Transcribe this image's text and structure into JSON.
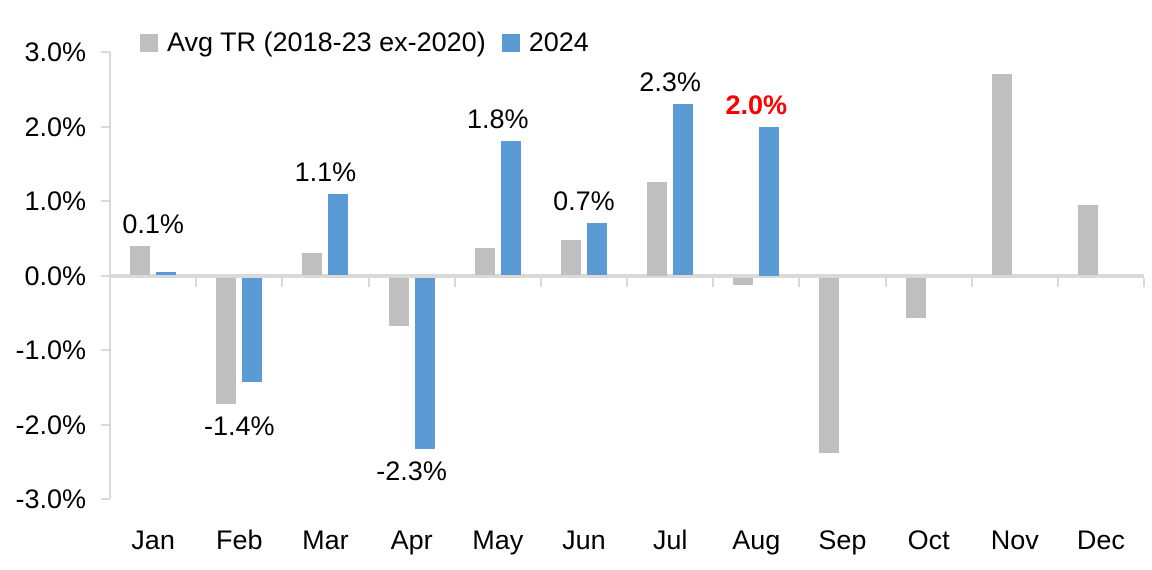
{
  "chart_data": {
    "type": "bar",
    "title": "",
    "categories": [
      "Jan",
      "Feb",
      "Mar",
      "Apr",
      "May",
      "Jun",
      "Jul",
      "Aug",
      "Sep",
      "Oct",
      "Nov",
      "Dec"
    ],
    "series": [
      {
        "name": "Avg TR (2018-23 ex-2020)",
        "color": "#bfbfbf",
        "values": [
          0.4,
          -1.7,
          0.3,
          -0.65,
          0.37,
          0.47,
          1.25,
          -0.1,
          -2.35,
          -0.55,
          2.7,
          0.95
        ]
      },
      {
        "name": "2024",
        "color": "#5b9bd5",
        "values": [
          0.05,
          -1.4,
          1.1,
          -2.3,
          1.8,
          0.7,
          2.3,
          2.0,
          null,
          null,
          null,
          null
        ]
      }
    ],
    "data_labels": [
      {
        "category": "Jan",
        "text": "0.1%",
        "position": "above",
        "color": "#000000",
        "bold": false
      },
      {
        "category": "Feb",
        "text": "-1.4%",
        "position": "below",
        "color": "#000000",
        "bold": false
      },
      {
        "category": "Mar",
        "text": "1.1%",
        "position": "above",
        "color": "#000000",
        "bold": false
      },
      {
        "category": "Apr",
        "text": "-2.3%",
        "position": "below",
        "color": "#000000",
        "bold": false
      },
      {
        "category": "May",
        "text": "1.8%",
        "position": "above",
        "color": "#000000",
        "bold": false
      },
      {
        "category": "Jun",
        "text": "0.7%",
        "position": "above",
        "color": "#000000",
        "bold": false
      },
      {
        "category": "Jul",
        "text": "2.3%",
        "position": "above",
        "color": "#000000",
        "bold": false
      },
      {
        "category": "Aug",
        "text": "2.0%",
        "position": "above",
        "color": "#ff0000",
        "bold": true
      }
    ],
    "yticks": [
      "3.0%",
      "2.0%",
      "1.0%",
      "0.0%",
      "-1.0%",
      "-2.0%",
      "-3.0%"
    ],
    "ylim": [
      -3,
      3
    ],
    "grid": false,
    "legend_position": "top",
    "axis_color": "#d9d9d9",
    "text_color": "#000000"
  }
}
